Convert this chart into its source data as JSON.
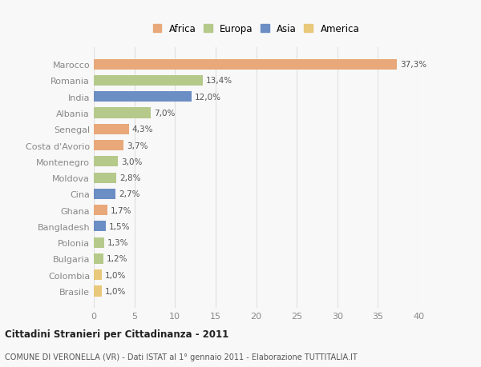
{
  "categories": [
    "Brasile",
    "Colombia",
    "Bulgaria",
    "Polonia",
    "Bangladesh",
    "Ghana",
    "Cina",
    "Moldova",
    "Montenegro",
    "Costa d'Avorio",
    "Senegal",
    "Albania",
    "India",
    "Romania",
    "Marocco"
  ],
  "values": [
    1.0,
    1.0,
    1.2,
    1.3,
    1.5,
    1.7,
    2.7,
    2.8,
    3.0,
    3.7,
    4.3,
    7.0,
    12.0,
    13.4,
    37.3
  ],
  "labels": [
    "1,0%",
    "1,0%",
    "1,2%",
    "1,3%",
    "1,5%",
    "1,7%",
    "2,7%",
    "2,8%",
    "3,0%",
    "3,7%",
    "4,3%",
    "7,0%",
    "12,0%",
    "13,4%",
    "37,3%"
  ],
  "colors": [
    "#e8c87a",
    "#e8c87a",
    "#b5c98a",
    "#b5c98a",
    "#6b8ec4",
    "#e8a87a",
    "#6b8ec4",
    "#b5c98a",
    "#b5c98a",
    "#e8a87a",
    "#e8a87a",
    "#b5c98a",
    "#6b8ec4",
    "#b5c98a",
    "#e8a87a"
  ],
  "legend_labels": [
    "Africa",
    "Europa",
    "Asia",
    "America"
  ],
  "legend_colors": [
    "#e8a87a",
    "#b5c98a",
    "#6b8ec4",
    "#e8c87a"
  ],
  "title": "Cittadini Stranieri per Cittadinanza - 2011",
  "subtitle": "COMUNE DI VERONELLA (VR) - Dati ISTAT al 1° gennaio 2011 - Elaborazione TUTTITALIA.IT",
  "xlim": [
    0,
    40
  ],
  "xticks": [
    0,
    5,
    10,
    15,
    20,
    25,
    30,
    35,
    40
  ],
  "bg_color": "#f8f8f8",
  "bar_height": 0.65,
  "grid_color": "#e0e0e0",
  "label_color": "#555555",
  "tick_color": "#888888"
}
